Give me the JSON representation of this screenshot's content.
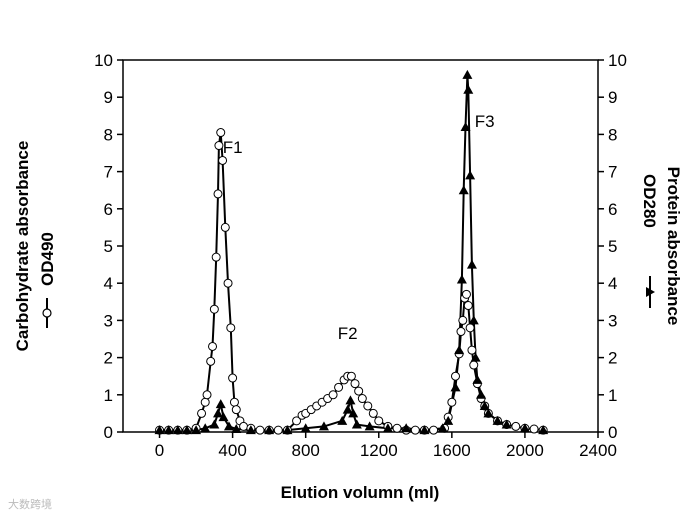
{
  "chart_data": {
    "type": "line",
    "x_label": "Elution volumn (ml)",
    "y_label": "Carbohydrate absorbance",
    "y2_label": "Protein absorbance",
    "xlim": [
      -200,
      2400
    ],
    "xticks": [
      0,
      400,
      800,
      1200,
      1600,
      2000,
      2400
    ],
    "ylim": [
      0,
      10
    ],
    "yticks": [
      0,
      1,
      2,
      3,
      4,
      5,
      6,
      7,
      8,
      9,
      10
    ],
    "y2lim": [
      0,
      10
    ],
    "y2ticks": [
      0,
      1,
      2,
      3,
      4,
      5,
      6,
      7,
      8,
      9,
      10
    ],
    "series": [
      {
        "name": "OD490",
        "color": "#000000",
        "marker": "circle",
        "x": [
          0,
          50,
          100,
          150,
          200,
          230,
          250,
          260,
          280,
          290,
          300,
          310,
          320,
          325,
          335,
          345,
          360,
          375,
          390,
          400,
          410,
          420,
          440,
          460,
          500,
          550,
          600,
          650,
          700,
          750,
          780,
          800,
          830,
          860,
          890,
          920,
          950,
          980,
          1010,
          1030,
          1050,
          1070,
          1090,
          1110,
          1140,
          1170,
          1200,
          1250,
          1300,
          1350,
          1400,
          1450,
          1500,
          1560,
          1580,
          1600,
          1620,
          1640,
          1650,
          1660,
          1670,
          1680,
          1690,
          1700,
          1710,
          1720,
          1740,
          1760,
          1780,
          1800,
          1850,
          1900,
          1950,
          2000,
          2050,
          2100
        ],
        "values": [
          0.05,
          0.05,
          0.05,
          0.05,
          0.1,
          0.5,
          0.8,
          1.0,
          1.9,
          2.3,
          3.3,
          4.7,
          6.4,
          7.7,
          8.05,
          7.3,
          5.5,
          4.0,
          2.8,
          1.45,
          0.8,
          0.6,
          0.3,
          0.15,
          0.1,
          0.05,
          0.05,
          0.05,
          0.05,
          0.3,
          0.45,
          0.5,
          0.6,
          0.7,
          0.8,
          0.9,
          1.0,
          1.2,
          1.4,
          1.5,
          1.5,
          1.3,
          1.1,
          0.9,
          0.7,
          0.5,
          0.3,
          0.15,
          0.1,
          0.05,
          0.05,
          0.05,
          0.05,
          0.1,
          0.4,
          0.8,
          1.5,
          2.1,
          2.7,
          3.0,
          3.6,
          3.7,
          3.4,
          2.8,
          2.2,
          1.8,
          1.3,
          0.9,
          0.7,
          0.5,
          0.3,
          0.2,
          0.15,
          0.1,
          0.08,
          0.05
        ]
      },
      {
        "name": "OD280",
        "color": "#000000",
        "marker": "triangle",
        "axis": "y2",
        "x": [
          0,
          50,
          100,
          150,
          200,
          250,
          300,
          320,
          335,
          350,
          380,
          420,
          500,
          600,
          700,
          800,
          900,
          1000,
          1030,
          1045,
          1060,
          1080,
          1150,
          1250,
          1350,
          1450,
          1550,
          1580,
          1620,
          1640,
          1655,
          1665,
          1675,
          1685,
          1690,
          1700,
          1710,
          1720,
          1730,
          1740,
          1760,
          1780,
          1800,
          1850,
          1900,
          2000,
          2100
        ],
        "values": [
          0.05,
          0.05,
          0.05,
          0.05,
          0.05,
          0.1,
          0.2,
          0.5,
          0.75,
          0.4,
          0.15,
          0.08,
          0.05,
          0.05,
          0.05,
          0.1,
          0.15,
          0.3,
          0.6,
          0.85,
          0.5,
          0.2,
          0.15,
          0.1,
          0.1,
          0.05,
          0.1,
          0.3,
          1.2,
          2.2,
          4.1,
          6.5,
          8.2,
          9.6,
          9.2,
          6.9,
          4.5,
          3.0,
          2.0,
          1.4,
          1.0,
          0.7,
          0.5,
          0.3,
          0.2,
          0.1,
          0.05
        ]
      }
    ],
    "annotations": [
      {
        "text": "F1",
        "x": 400,
        "y": 7.5
      },
      {
        "text": "F2",
        "x": 1030,
        "y": 2.5
      },
      {
        "text": "F3",
        "x": 1780,
        "y": 8.2
      }
    ],
    "watermark": "大数跨境"
  }
}
